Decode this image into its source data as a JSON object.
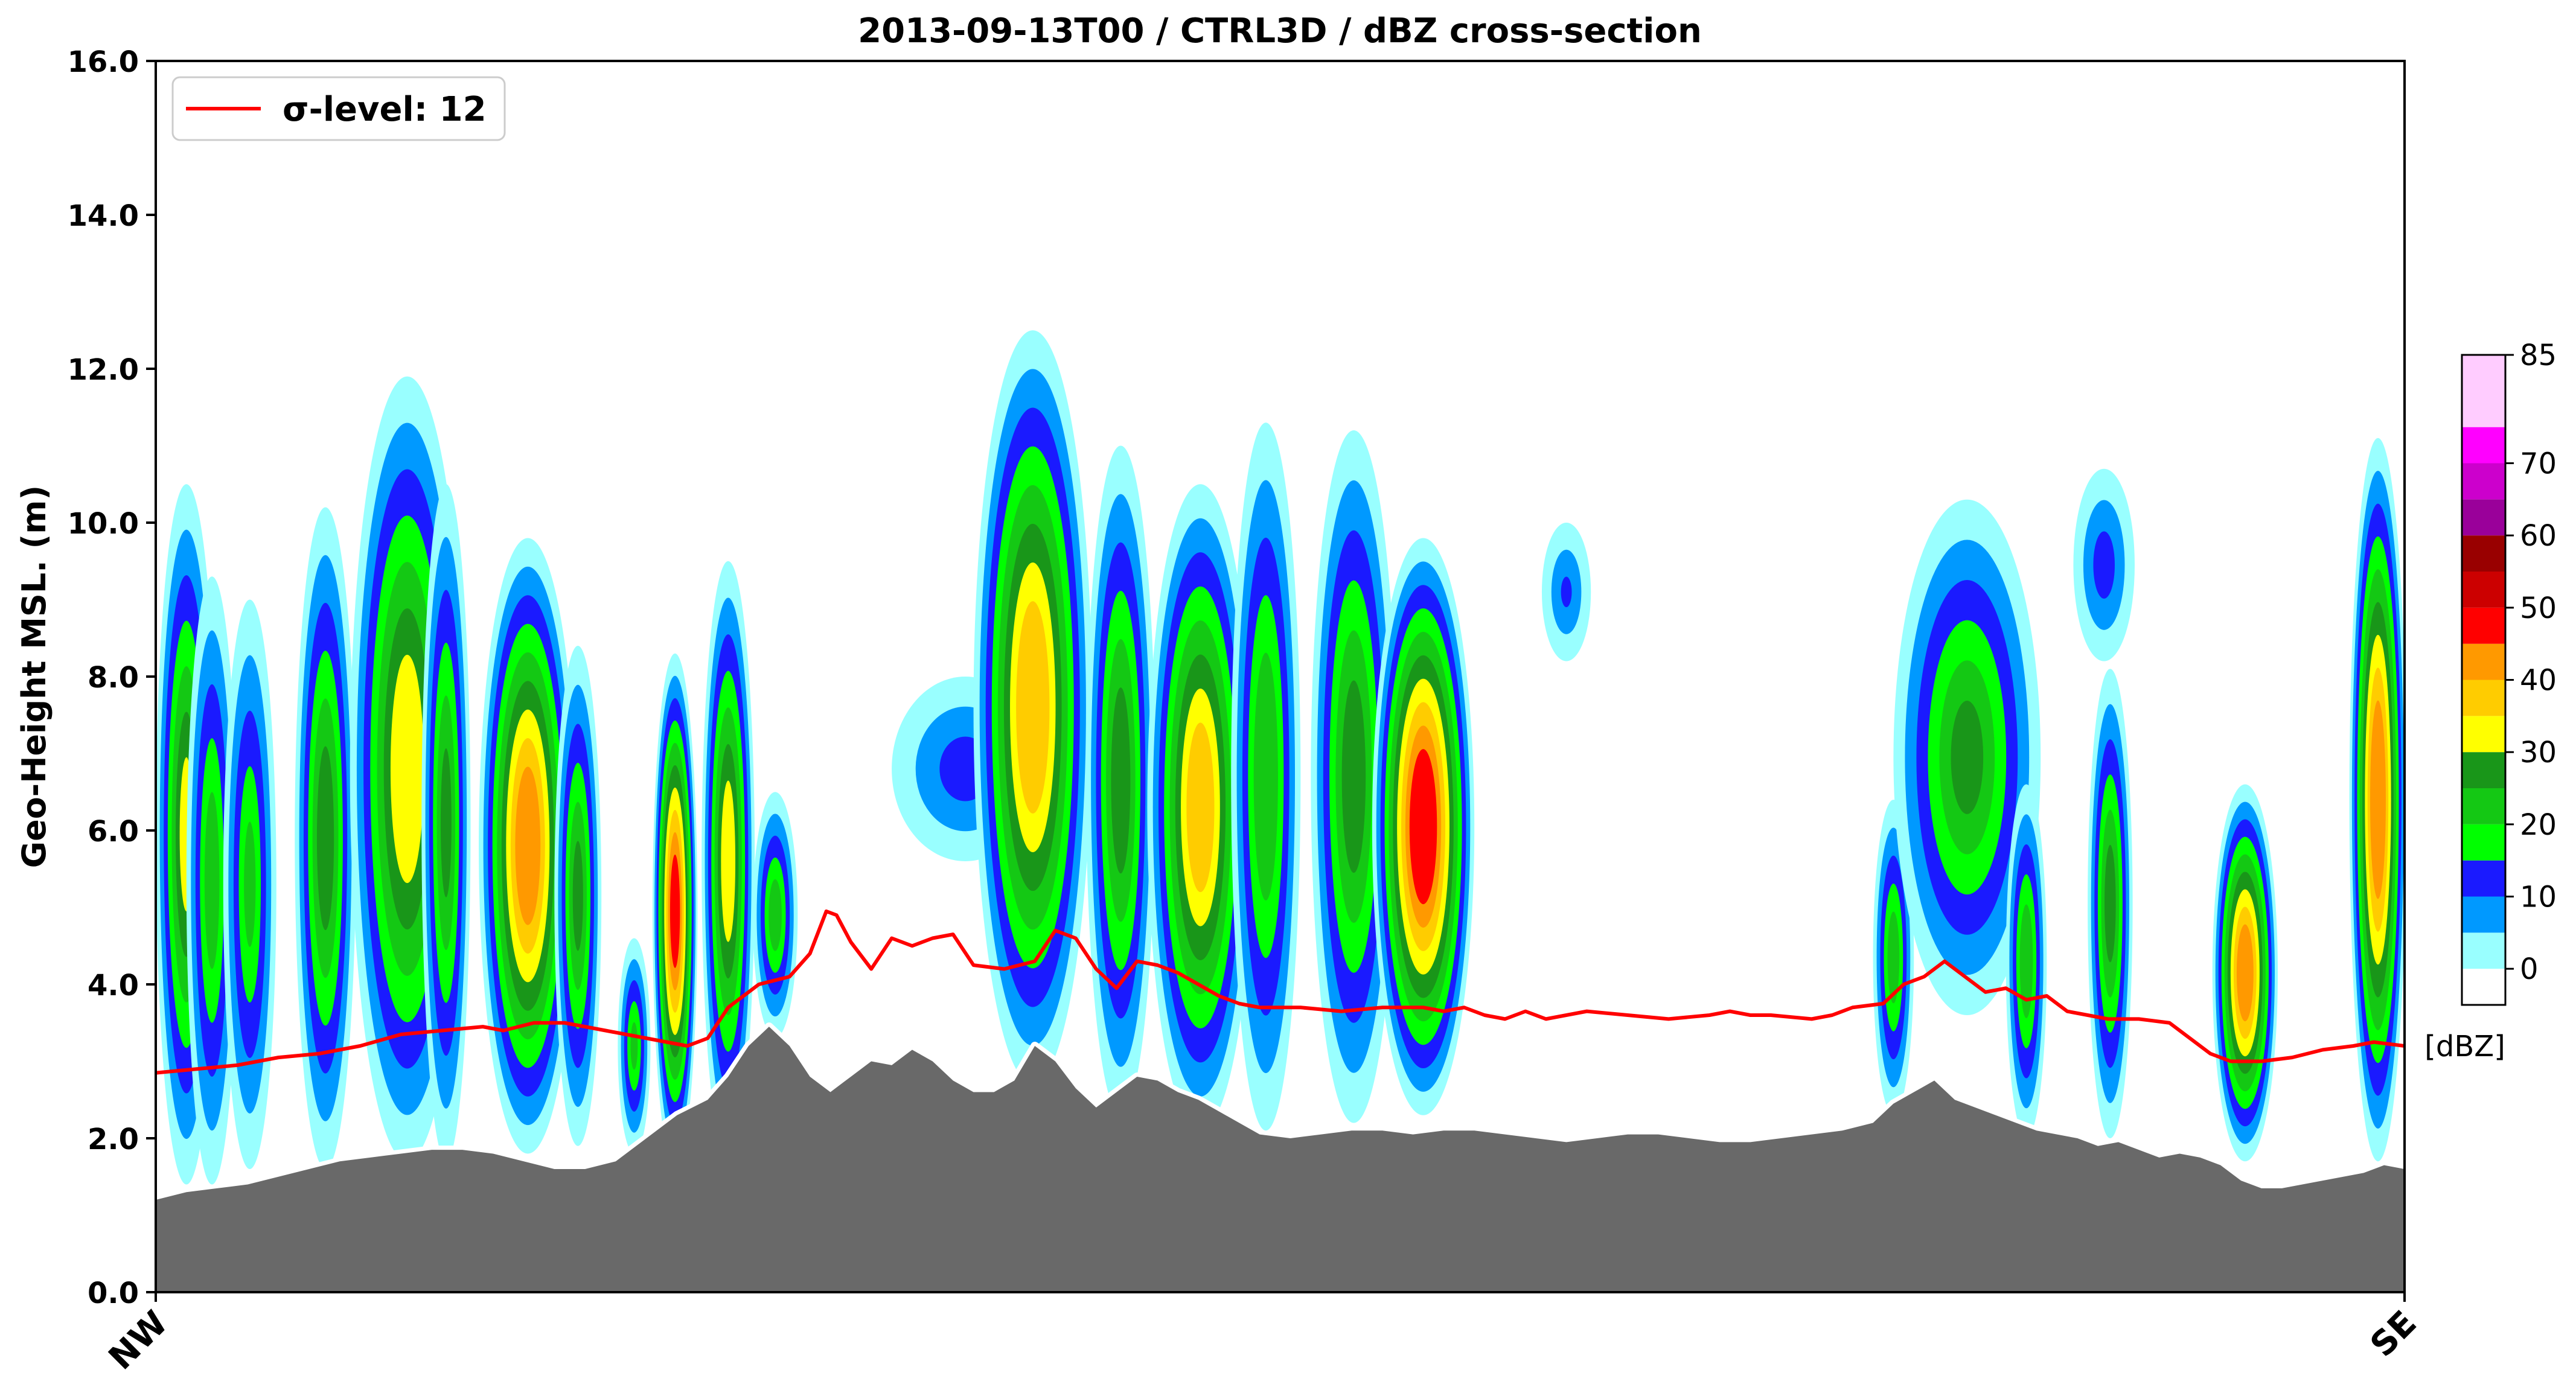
{
  "chart_data": {
    "type": "contourf",
    "title": "2013-09-13T00 / CTRL3D / dBZ cross-section",
    "ylabel": "Geo-Height MSL. (m)",
    "ylim": [
      0,
      16
    ],
    "yticks": [
      0,
      2,
      4,
      6,
      8,
      10,
      12,
      14,
      16
    ],
    "ytick_labels": [
      "0.0",
      "2.0",
      "4.0",
      "6.0",
      "8.0",
      "10.0",
      "12.0",
      "14.0",
      "16.0"
    ],
    "x_ends": [
      "NW",
      "SE"
    ],
    "grid": false,
    "legend": {
      "placement": "top-left",
      "label": "σ-level: 12",
      "color": "#ff0000"
    },
    "colorbar": {
      "unit_label": "[dBZ]",
      "ticks": [
        0,
        10,
        20,
        30,
        40,
        50,
        60,
        70,
        85
      ],
      "levels": [
        -5,
        0,
        5,
        10,
        15,
        20,
        25,
        30,
        35,
        40,
        45,
        50,
        55,
        60,
        65,
        70,
        75,
        85
      ],
      "colors": [
        "#ffffff",
        "#99ffff",
        "#0099ff",
        "#1a1aff",
        "#00ff00",
        "#14c814",
        "#199619",
        "#ffff00",
        "#ffcc00",
        "#ff9900",
        "#ff0000",
        "#cc0000",
        "#990000",
        "#9a009a",
        "#cc00cc",
        "#ff00ff",
        "#ffccff"
      ]
    },
    "terrain_color": "#696969",
    "terrain": [
      [
        0.0,
        1.2
      ],
      [
        1.5,
        1.3
      ],
      [
        3.0,
        1.35
      ],
      [
        4.5,
        1.4
      ],
      [
        6.0,
        1.5
      ],
      [
        7.5,
        1.6
      ],
      [
        9.0,
        1.7
      ],
      [
        10.5,
        1.75
      ],
      [
        12.0,
        1.8
      ],
      [
        13.5,
        1.85
      ],
      [
        15.0,
        1.85
      ],
      [
        16.5,
        1.8
      ],
      [
        18.0,
        1.7
      ],
      [
        19.5,
        1.6
      ],
      [
        21.0,
        1.6
      ],
      [
        22.5,
        1.7
      ],
      [
        24.0,
        2.0
      ],
      [
        25.5,
        2.3
      ],
      [
        27.0,
        2.5
      ],
      [
        28.0,
        2.8
      ],
      [
        29.0,
        3.2
      ],
      [
        30.0,
        3.45
      ],
      [
        31.0,
        3.2
      ],
      [
        32.0,
        2.8
      ],
      [
        33.0,
        2.6
      ],
      [
        34.0,
        2.8
      ],
      [
        35.0,
        3.0
      ],
      [
        36.0,
        2.95
      ],
      [
        37.0,
        3.15
      ],
      [
        38.0,
        3.0
      ],
      [
        39.0,
        2.75
      ],
      [
        40.0,
        2.6
      ],
      [
        41.0,
        2.6
      ],
      [
        42.0,
        2.75
      ],
      [
        43.0,
        3.2
      ],
      [
        44.0,
        3.0
      ],
      [
        45.0,
        2.65
      ],
      [
        46.0,
        2.4
      ],
      [
        47.0,
        2.6
      ],
      [
        48.0,
        2.8
      ],
      [
        49.0,
        2.75
      ],
      [
        50.0,
        2.6
      ],
      [
        51.0,
        2.5
      ],
      [
        52.0,
        2.35
      ],
      [
        53.0,
        2.2
      ],
      [
        54.0,
        2.05
      ],
      [
        55.5,
        2.0
      ],
      [
        57.0,
        2.05
      ],
      [
        58.5,
        2.1
      ],
      [
        60.0,
        2.1
      ],
      [
        61.5,
        2.05
      ],
      [
        63.0,
        2.1
      ],
      [
        64.5,
        2.1
      ],
      [
        66.0,
        2.05
      ],
      [
        67.5,
        2.0
      ],
      [
        69.0,
        1.95
      ],
      [
        70.5,
        2.0
      ],
      [
        72.0,
        2.05
      ],
      [
        73.5,
        2.05
      ],
      [
        75.0,
        2.0
      ],
      [
        76.5,
        1.95
      ],
      [
        78.0,
        1.95
      ],
      [
        79.5,
        2.0
      ],
      [
        81.0,
        2.05
      ],
      [
        82.5,
        2.1
      ],
      [
        84.0,
        2.2
      ],
      [
        85.0,
        2.45
      ],
      [
        86.0,
        2.6
      ],
      [
        87.0,
        2.75
      ],
      [
        88.0,
        2.5
      ],
      [
        89.0,
        2.4
      ],
      [
        90.0,
        2.3
      ],
      [
        91.0,
        2.2
      ],
      [
        92.0,
        2.1
      ],
      [
        93.0,
        2.05
      ],
      [
        94.0,
        2.0
      ],
      [
        95.0,
        1.9
      ],
      [
        96.0,
        1.95
      ],
      [
        97.0,
        1.85
      ],
      [
        98.0,
        1.75
      ],
      [
        99.0,
        1.8
      ],
      [
        100.0,
        1.75
      ],
      [
        101.0,
        1.65
      ],
      [
        102.0,
        1.45
      ],
      [
        103.0,
        1.35
      ],
      [
        104.0,
        1.35
      ],
      [
        105.0,
        1.4
      ],
      [
        106.0,
        1.45
      ],
      [
        107.0,
        1.5
      ],
      [
        108.0,
        1.55
      ],
      [
        109.0,
        1.65
      ],
      [
        110.0,
        1.6
      ]
    ],
    "sigma_line": [
      [
        0.0,
        2.85
      ],
      [
        2.0,
        2.9
      ],
      [
        4.0,
        2.95
      ],
      [
        6.0,
        3.05
      ],
      [
        8.0,
        3.1
      ],
      [
        10.0,
        3.2
      ],
      [
        12.0,
        3.35
      ],
      [
        14.0,
        3.4
      ],
      [
        16.0,
        3.45
      ],
      [
        17.0,
        3.4
      ],
      [
        18.5,
        3.5
      ],
      [
        20.0,
        3.5
      ],
      [
        22.0,
        3.4
      ],
      [
        24.0,
        3.3
      ],
      [
        26.0,
        3.2
      ],
      [
        27.0,
        3.3
      ],
      [
        28.0,
        3.7
      ],
      [
        29.5,
        4.0
      ],
      [
        31.0,
        4.1
      ],
      [
        32.0,
        4.4
      ],
      [
        32.8,
        4.95
      ],
      [
        33.3,
        4.9
      ],
      [
        34.0,
        4.55
      ],
      [
        35.0,
        4.2
      ],
      [
        36.0,
        4.6
      ],
      [
        37.0,
        4.5
      ],
      [
        38.0,
        4.6
      ],
      [
        39.0,
        4.65
      ],
      [
        40.0,
        4.25
      ],
      [
        41.5,
        4.2
      ],
      [
        43.0,
        4.3
      ],
      [
        44.0,
        4.7
      ],
      [
        45.0,
        4.6
      ],
      [
        46.0,
        4.2
      ],
      [
        47.0,
        3.95
      ],
      [
        48.0,
        4.3
      ],
      [
        49.0,
        4.25
      ],
      [
        50.0,
        4.15
      ],
      [
        51.0,
        4.0
      ],
      [
        52.0,
        3.85
      ],
      [
        53.0,
        3.75
      ],
      [
        54.0,
        3.7
      ],
      [
        56.0,
        3.7
      ],
      [
        58.0,
        3.65
      ],
      [
        60.0,
        3.7
      ],
      [
        62.0,
        3.7
      ],
      [
        63.0,
        3.65
      ],
      [
        64.0,
        3.7
      ],
      [
        65.0,
        3.6
      ],
      [
        66.0,
        3.55
      ],
      [
        67.0,
        3.65
      ],
      [
        68.0,
        3.55
      ],
      [
        70.0,
        3.65
      ],
      [
        72.0,
        3.6
      ],
      [
        74.0,
        3.55
      ],
      [
        76.0,
        3.6
      ],
      [
        77.0,
        3.65
      ],
      [
        78.0,
        3.6
      ],
      [
        79.0,
        3.6
      ],
      [
        81.0,
        3.55
      ],
      [
        82.0,
        3.6
      ],
      [
        83.0,
        3.7
      ],
      [
        84.5,
        3.75
      ],
      [
        85.5,
        4.0
      ],
      [
        86.5,
        4.1
      ],
      [
        87.5,
        4.3
      ],
      [
        88.5,
        4.1
      ],
      [
        89.5,
        3.9
      ],
      [
        90.5,
        3.95
      ],
      [
        91.5,
        3.8
      ],
      [
        92.5,
        3.85
      ],
      [
        93.5,
        3.65
      ],
      [
        94.5,
        3.6
      ],
      [
        95.5,
        3.55
      ],
      [
        97.0,
        3.55
      ],
      [
        98.5,
        3.5
      ],
      [
        99.5,
        3.3
      ],
      [
        100.5,
        3.1
      ],
      [
        101.5,
        3.0
      ],
      [
        103.0,
        3.0
      ],
      [
        104.5,
        3.05
      ],
      [
        106.0,
        3.15
      ],
      [
        107.5,
        3.2
      ],
      [
        108.5,
        3.25
      ],
      [
        110.0,
        3.2
      ]
    ],
    "cells": [
      {
        "x": 0.0,
        "w": 3.0,
        "b": 1.4,
        "t": 10.5,
        "m": 30
      },
      {
        "x": 1.5,
        "w": 2.5,
        "b": 1.4,
        "t": 9.3,
        "m": 22
      },
      {
        "x": 3.3,
        "w": 2.6,
        "b": 1.6,
        "t": 9.0,
        "m": 20
      },
      {
        "x": 6.8,
        "w": 3.0,
        "b": 1.6,
        "t": 10.2,
        "m": 27
      },
      {
        "x": 9.5,
        "w": 5.6,
        "b": 1.7,
        "t": 11.9,
        "m": 33
      },
      {
        "x": 13.0,
        "w": 2.4,
        "b": 1.7,
        "t": 10.5,
        "m": 25
      },
      {
        "x": 15.8,
        "w": 4.8,
        "b": 1.8,
        "t": 9.8,
        "m": 42
      },
      {
        "x": 19.5,
        "w": 2.3,
        "b": 1.9,
        "t": 8.4,
        "m": 25
      },
      {
        "x": 22.6,
        "w": 1.6,
        "b": 1.8,
        "t": 4.6,
        "m": 20
      },
      {
        "x": 24.3,
        "w": 2.2,
        "b": 1.6,
        "t": 8.3,
        "m": 45
      },
      {
        "x": 26.7,
        "w": 2.6,
        "b": 1.7,
        "t": 9.5,
        "m": 32
      },
      {
        "x": 29.2,
        "w": 2.2,
        "b": 3.3,
        "t": 6.5,
        "m": 22
      },
      {
        "x": 36.0,
        "w": 7.2,
        "b": 5.6,
        "t": 8.0,
        "m": 12
      },
      {
        "x": 40.0,
        "w": 5.8,
        "b": 2.7,
        "t": 12.5,
        "m": 38
      },
      {
        "x": 45.5,
        "w": 3.4,
        "b": 2.3,
        "t": 11.0,
        "m": 27
      },
      {
        "x": 48.5,
        "w": 5.2,
        "b": 2.1,
        "t": 10.5,
        "m": 37
      },
      {
        "x": 52.6,
        "w": 3.4,
        "b": 2.1,
        "t": 11.3,
        "m": 24
      },
      {
        "x": 56.5,
        "w": 4.2,
        "b": 2.2,
        "t": 11.2,
        "m": 27
      },
      {
        "x": 59.5,
        "w": 5.0,
        "b": 2.3,
        "t": 9.8,
        "m": 48
      },
      {
        "x": 67.8,
        "w": 2.4,
        "b": 8.2,
        "t": 10.0,
        "m": 10
      },
      {
        "x": 84.0,
        "w": 2.0,
        "b": 2.3,
        "t": 6.4,
        "m": 22
      },
      {
        "x": 85.0,
        "w": 7.2,
        "b": 3.6,
        "t": 10.3,
        "m": 25
      },
      {
        "x": 90.5,
        "w": 2.0,
        "b": 2.0,
        "t": 6.6,
        "m": 23
      },
      {
        "x": 93.8,
        "w": 3.0,
        "b": 8.2,
        "t": 10.7,
        "m": 12
      },
      {
        "x": 94.5,
        "w": 2.2,
        "b": 2.0,
        "t": 8.1,
        "m": 26
      },
      {
        "x": 100.6,
        "w": 3.2,
        "b": 1.7,
        "t": 6.6,
        "m": 42
      },
      {
        "x": 107.3,
        "w": 2.8,
        "b": 1.7,
        "t": 11.1,
        "m": 43
      }
    ]
  }
}
